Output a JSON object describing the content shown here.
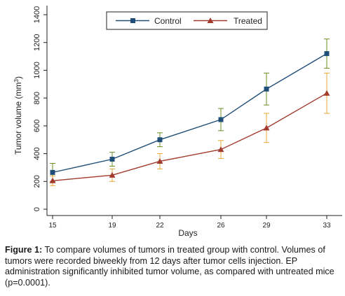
{
  "chart_data": {
    "type": "line",
    "x": [
      15,
      19,
      22,
      26,
      29,
      33
    ],
    "xticks": [
      "15",
      "19",
      "22",
      "26",
      "29",
      "33"
    ],
    "xlabel": "Days",
    "ylabel_prefix": "Tumor volume (mm",
    "ylabel_sup": "3",
    "ylabel_suffix": ")",
    "ylim": [
      0,
      1400
    ],
    "yticks": [
      "0",
      "200",
      "400",
      "600",
      "800",
      "1000",
      "1200",
      "1400"
    ],
    "legend_position": "top-right",
    "grid": false,
    "series": [
      {
        "name": "Control",
        "color": "#1f4e79",
        "marker": "square",
        "values": [
          265,
          360,
          500,
          645,
          865,
          1120
        ],
        "errors": [
          65,
          50,
          50,
          80,
          115,
          105
        ]
      },
      {
        "name": "Treated",
        "color": "#a33a2e",
        "marker": "triangle",
        "values": [
          205,
          245,
          345,
          430,
          585,
          835
        ],
        "errors": [
          35,
          45,
          55,
          65,
          105,
          145
        ]
      }
    ],
    "errorbar_color": "#c9a227",
    "errorbar_colors": [
      "#6b8e23",
      "#e8a838"
    ]
  },
  "caption": {
    "label": "Figure 1:",
    "text": " To compare volumes of tumors in treated group with control. Volumes of tumors were recorded biweekly from 12 days after tumor cells injection. EP administration significantly inhibited tumor volume, as compared with untreated mice (p=0.0001)."
  }
}
